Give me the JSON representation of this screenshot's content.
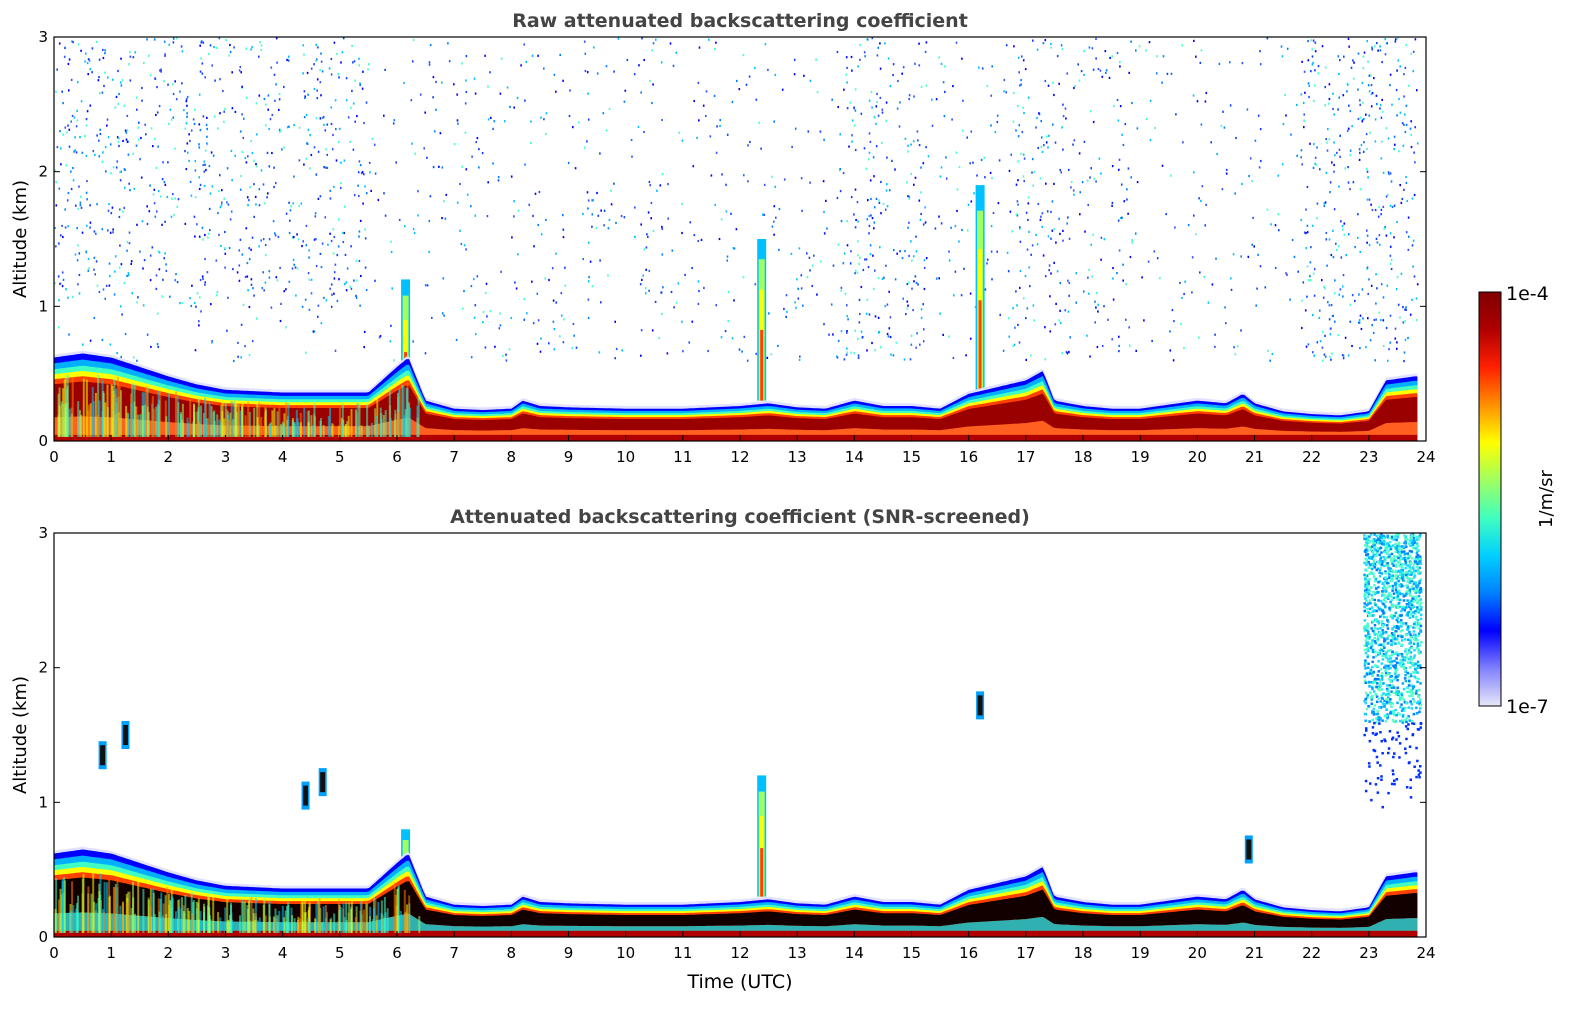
{
  "chart_data": [
    {
      "type": "heatmap",
      "title": "Raw attenuated backscattering coefficient",
      "xlabel": "",
      "ylabel": "Altitude (km)",
      "xlim": [
        0,
        24
      ],
      "ylim": [
        0,
        3
      ],
      "xticks": [
        "0",
        "1",
        "2",
        "3",
        "4",
        "5",
        "6",
        "7",
        "8",
        "9",
        "10",
        "11",
        "12",
        "13",
        "14",
        "15",
        "16",
        "17",
        "18",
        "19",
        "20",
        "21",
        "22",
        "23",
        "24"
      ],
      "yticks": [
        "0",
        "1",
        "2",
        "3"
      ],
      "noise_in_upper_levels": true,
      "boundary_layer_top_km": [
        [
          0.0,
          0.62
        ],
        [
          0.5,
          0.65
        ],
        [
          1.0,
          0.62
        ],
        [
          1.5,
          0.55
        ],
        [
          2.0,
          0.48
        ],
        [
          2.5,
          0.42
        ],
        [
          3.0,
          0.38
        ],
        [
          3.5,
          0.37
        ],
        [
          4.0,
          0.36
        ],
        [
          4.5,
          0.36
        ],
        [
          5.0,
          0.36
        ],
        [
          5.5,
          0.36
        ],
        [
          6.0,
          0.55
        ],
        [
          6.2,
          0.62
        ],
        [
          6.5,
          0.3
        ],
        [
          7.0,
          0.24
        ],
        [
          7.5,
          0.23
        ],
        [
          8.0,
          0.24
        ],
        [
          8.2,
          0.3
        ],
        [
          8.5,
          0.26
        ],
        [
          9.0,
          0.25
        ],
        [
          10.0,
          0.24
        ],
        [
          11.0,
          0.24
        ],
        [
          12.0,
          0.26
        ],
        [
          12.5,
          0.28
        ],
        [
          13.0,
          0.25
        ],
        [
          13.5,
          0.24
        ],
        [
          14.0,
          0.3
        ],
        [
          14.5,
          0.26
        ],
        [
          15.0,
          0.26
        ],
        [
          15.5,
          0.24
        ],
        [
          16.0,
          0.35
        ],
        [
          16.5,
          0.4
        ],
        [
          17.0,
          0.45
        ],
        [
          17.3,
          0.52
        ],
        [
          17.5,
          0.3
        ],
        [
          18.0,
          0.26
        ],
        [
          18.5,
          0.24
        ],
        [
          19.0,
          0.24
        ],
        [
          19.5,
          0.27
        ],
        [
          20.0,
          0.3
        ],
        [
          20.5,
          0.28
        ],
        [
          20.8,
          0.35
        ],
        [
          21.0,
          0.28
        ],
        [
          21.5,
          0.22
        ],
        [
          22.0,
          0.2
        ],
        [
          22.5,
          0.19
        ],
        [
          23.0,
          0.22
        ],
        [
          23.3,
          0.45
        ],
        [
          23.8,
          0.48
        ]
      ],
      "plumes": [
        {
          "time": 6.15,
          "top_km": 1.2
        },
        {
          "time": 12.38,
          "top_km": 1.5
        },
        {
          "time": 16.2,
          "top_km": 1.9
        }
      ]
    },
    {
      "type": "heatmap",
      "title": "Attenuated backscattering coefficient (SNR-screened)",
      "xlabel": "Time (UTC)",
      "ylabel": "Altitude (km)",
      "xlim": [
        0,
        24
      ],
      "ylim": [
        0,
        3
      ],
      "xticks": [
        "0",
        "1",
        "2",
        "3",
        "4",
        "5",
        "6",
        "7",
        "8",
        "9",
        "10",
        "11",
        "12",
        "13",
        "14",
        "15",
        "16",
        "17",
        "18",
        "19",
        "20",
        "21",
        "22",
        "23",
        "24"
      ],
      "yticks": [
        "0",
        "1",
        "2",
        "3"
      ],
      "noise_in_upper_levels": false,
      "boundary_layer_top_km": [
        [
          0.0,
          0.62
        ],
        [
          0.5,
          0.65
        ],
        [
          1.0,
          0.62
        ],
        [
          1.5,
          0.55
        ],
        [
          2.0,
          0.48
        ],
        [
          2.5,
          0.42
        ],
        [
          3.0,
          0.38
        ],
        [
          3.5,
          0.37
        ],
        [
          4.0,
          0.36
        ],
        [
          4.5,
          0.36
        ],
        [
          5.0,
          0.36
        ],
        [
          5.5,
          0.36
        ],
        [
          6.0,
          0.55
        ],
        [
          6.2,
          0.62
        ],
        [
          6.5,
          0.3
        ],
        [
          7.0,
          0.24
        ],
        [
          7.5,
          0.23
        ],
        [
          8.0,
          0.24
        ],
        [
          8.2,
          0.3
        ],
        [
          8.5,
          0.26
        ],
        [
          9.0,
          0.25
        ],
        [
          10.0,
          0.24
        ],
        [
          11.0,
          0.24
        ],
        [
          12.0,
          0.26
        ],
        [
          12.5,
          0.28
        ],
        [
          13.0,
          0.25
        ],
        [
          13.5,
          0.24
        ],
        [
          14.0,
          0.3
        ],
        [
          14.5,
          0.26
        ],
        [
          15.0,
          0.26
        ],
        [
          15.5,
          0.24
        ],
        [
          16.0,
          0.35
        ],
        [
          16.5,
          0.4
        ],
        [
          17.0,
          0.45
        ],
        [
          17.3,
          0.52
        ],
        [
          17.5,
          0.3
        ],
        [
          18.0,
          0.26
        ],
        [
          18.5,
          0.24
        ],
        [
          19.0,
          0.24
        ],
        [
          19.5,
          0.27
        ],
        [
          20.0,
          0.3
        ],
        [
          20.5,
          0.28
        ],
        [
          20.8,
          0.35
        ],
        [
          21.0,
          0.28
        ],
        [
          21.5,
          0.22
        ],
        [
          22.0,
          0.2
        ],
        [
          22.5,
          0.19
        ],
        [
          23.0,
          0.22
        ],
        [
          23.3,
          0.45
        ],
        [
          23.8,
          0.48
        ]
      ],
      "plumes": [
        {
          "time": 6.15,
          "top_km": 0.8
        },
        {
          "time": 12.38,
          "top_km": 1.2
        }
      ],
      "isolated_features": [
        {
          "time": 16.2,
          "alt_km": 1.72
        },
        {
          "time": 0.85,
          "alt_km": 1.35
        },
        {
          "time": 1.25,
          "alt_km": 1.5
        },
        {
          "time": 4.4,
          "alt_km": 1.05
        },
        {
          "time": 4.7,
          "alt_km": 1.15
        },
        {
          "time": 20.9,
          "alt_km": 0.65
        }
      ],
      "high_cloud": {
        "time_start": 22.9,
        "time_end": 23.9,
        "alt_min_km": 0.95,
        "alt_max_km": 3.0
      }
    }
  ],
  "colorbar": {
    "label": "1/m/sr",
    "max_label": "1e-4",
    "min_label": "1e-7",
    "colors": [
      "#e8e8f8",
      "#8080ff",
      "#0000ff",
      "#0080ff",
      "#00d0ff",
      "#40ffc0",
      "#a0ff60",
      "#ffff00",
      "#ff9000",
      "#ff2000",
      "#b00000",
      "#800000"
    ]
  }
}
